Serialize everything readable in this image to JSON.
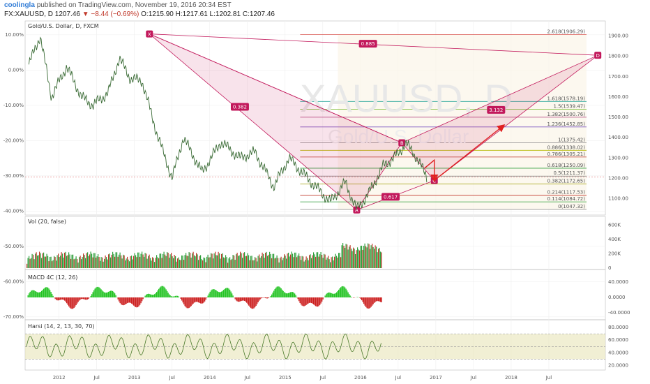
{
  "header": {
    "user": "coolingla",
    "published": "published on TradingView.com, November 19, 2016 20:34 EST",
    "symbol": "FX:XAUUSD, D",
    "last": "1207.46",
    "change": "▼ −8.44 (−0.69%)",
    "ohlc": "O:1215.90 H:1217.61 L:1202.81 C:1207.46"
  },
  "panes": {
    "main_title": "Gold/U.S. Dollar, D, FXCM",
    "vol_title": "Vol (20, false)",
    "macd_title": "MACD 4C (12, 26)",
    "rsi_title": "Harsi (14, 2, 13, 30, 70)",
    "watermark_symbol": "XAUUSD, D",
    "watermark_name": "Gold/U.S. Dollar"
  },
  "chart_data": {
    "type": "line",
    "title": "Gold/U.S. Dollar, D, FXCM",
    "x_ticks": [
      "2012",
      "Jul",
      "2013",
      "Jul",
      "2014",
      "Jul",
      "2015",
      "Jul",
      "2016",
      "Jul",
      "2017",
      "Jul",
      "2018",
      "Jul"
    ],
    "y_left_ticks": [
      "10.00%",
      "0.00%",
      "-10.00%",
      "-20.00%",
      "-30.00%",
      "-40.00%",
      "-50.00%",
      "-60.00%",
      "-70.00%"
    ],
    "y_right_ticks": [
      "1900.00",
      "1800.00",
      "1700.00",
      "1600.00",
      "1500.00",
      "1400.00",
      "1300.00",
      "1200.00",
      "1100.00"
    ],
    "price_series": [
      [
        2011.6,
        1760
      ],
      [
        2011.75,
        1900
      ],
      [
        2011.9,
        1600
      ],
      [
        2012.1,
        1750
      ],
      [
        2012.3,
        1600
      ],
      [
        2012.45,
        1560
      ],
      [
        2012.65,
        1620
      ],
      [
        2012.8,
        1790
      ],
      [
        2012.95,
        1690
      ],
      [
        2013.1,
        1680
      ],
      [
        2013.3,
        1420
      ],
      [
        2013.5,
        1200
      ],
      [
        2013.65,
        1400
      ],
      [
        2013.9,
        1230
      ],
      [
        2014.15,
        1380
      ],
      [
        2014.4,
        1300
      ],
      [
        2014.6,
        1330
      ],
      [
        2014.85,
        1160
      ],
      [
        2015.05,
        1300
      ],
      [
        2015.3,
        1200
      ],
      [
        2015.6,
        1085
      ],
      [
        2015.8,
        1180
      ],
      [
        2015.95,
        1047
      ],
      [
        2016.1,
        1120
      ],
      [
        2016.3,
        1260
      ],
      [
        2016.5,
        1320
      ],
      [
        2016.6,
        1375
      ],
      [
        2016.75,
        1300
      ],
      [
        2016.88,
        1207
      ]
    ],
    "fibonacci_levels": [
      {
        "ratio": "2.618",
        "price": 1906.29,
        "color": "#d9534f"
      },
      {
        "ratio": "1.618",
        "price": 1578.19,
        "color": "#26a69a"
      },
      {
        "ratio": "1.5",
        "price": 1539.47,
        "color": "#8bc34a"
      },
      {
        "ratio": "1.382",
        "price": 1500.76,
        "color": "#b03a78"
      },
      {
        "ratio": "1.236",
        "price": 1452.85,
        "color": "#7e57c2"
      },
      {
        "ratio": "1",
        "price": 1375.42,
        "color": "#888888"
      },
      {
        "ratio": "0.886",
        "price": 1338.02,
        "color": "#b5b800"
      },
      {
        "ratio": "0.786",
        "price": 1305.21,
        "color": "#c0392b"
      },
      {
        "ratio": "0.618",
        "price": 1250.09,
        "color": "#2e9e3a"
      },
      {
        "ratio": "0.5",
        "price": 1211.37,
        "color": "#777777"
      },
      {
        "ratio": "0.382",
        "price": 1172.65,
        "color": "#9e9e00"
      },
      {
        "ratio": "0.214",
        "price": 1117.53,
        "color": "#c0392b"
      },
      {
        "ratio": "0.114",
        "price": 1084.72,
        "color": "#2e9e3a"
      },
      {
        "ratio": "0",
        "price": 1047.32,
        "color": "#888888"
      }
    ],
    "pattern": {
      "points": [
        {
          "label": "X",
          "x": 2013.2,
          "price": 1910
        },
        {
          "label": "A",
          "x": 2015.95,
          "price": 1045
        },
        {
          "label": "B",
          "x": 2016.55,
          "price": 1375
        },
        {
          "label": "C",
          "x": 2016.98,
          "price": 1190
        },
        {
          "label": "D",
          "x": 2019.15,
          "price": 1805
        }
      ],
      "ratios": [
        {
          "value": "0.885",
          "x": 2016.1,
          "price": 1860
        },
        {
          "value": "0.382",
          "x": 2014.4,
          "price": 1550
        },
        {
          "value": "3.132",
          "x": 2017.8,
          "price": 1535
        },
        {
          "value": "0.617",
          "x": 2016.4,
          "price": 1108
        }
      ],
      "projection_arrows": [
        [
          [
            2016.85,
            1250
          ],
          [
            2016.98,
            1290
          ],
          [
            2016.98,
            1190
          ]
        ],
        [
          [
            2016.98,
            1190
          ],
          [
            2017.9,
            1460
          ]
        ]
      ]
    },
    "volume_ticks": [
      "600K",
      "400K",
      "200K",
      "0"
    ],
    "macd_ticks": [
      "40.0000",
      "0.0000",
      "-40.0000"
    ],
    "rsi_ticks": [
      "80.0000",
      "60.0000",
      "40.0000",
      "20.0000"
    ],
    "rsi_bands": [
      30,
      50,
      70
    ],
    "colors": {
      "up": "#2e9e3a",
      "down": "#c0392b",
      "pattern": "#c2185b",
      "arrow": "#e02020"
    }
  }
}
